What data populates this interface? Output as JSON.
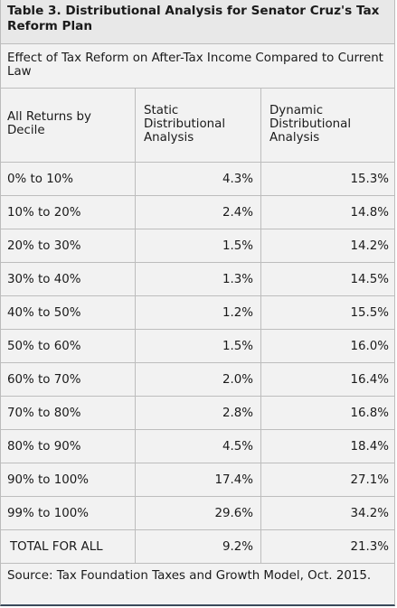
{
  "title": "Table 3. Distributional Analysis for Senator Cruz's Tax Reform Plan",
  "subtitle": "Effect of Tax Reform on After-Tax Income Compared to Current Law",
  "headers": {
    "decile": "All Returns by Decile",
    "static": "Static Distributional Analysis",
    "dynamic": "Dynamic Distributional Analysis"
  },
  "rows": [
    {
      "decile": "0% to 10%",
      "static": "4.3%",
      "dynamic": "15.3%"
    },
    {
      "decile": "10% to 20%",
      "static": "2.4%",
      "dynamic": "14.8%"
    },
    {
      "decile": "20% to 30%",
      "static": "1.5%",
      "dynamic": "14.2%"
    },
    {
      "decile": "30% to 40%",
      "static": "1.3%",
      "dynamic": "14.5%"
    },
    {
      "decile": "40% to 50%",
      "static": "1.2%",
      "dynamic": "15.5%"
    },
    {
      "decile": "50% to 60%",
      "static": "1.5%",
      "dynamic": "16.0%"
    },
    {
      "decile": "60% to 70%",
      "static": "2.0%",
      "dynamic": "16.4%"
    },
    {
      "decile": "70% to 80%",
      "static": "2.8%",
      "dynamic": "16.8%"
    },
    {
      "decile": "80% to 90%",
      "static": "4.5%",
      "dynamic": "18.4%"
    },
    {
      "decile": "90% to 100%",
      "static": "17.4%",
      "dynamic": "27.1%"
    },
    {
      "decile": "99% to 100%",
      "static": "29.6%",
      "dynamic": "34.2%"
    },
    {
      "decile": "TOTAL FOR ALL",
      "static": "9.2%",
      "dynamic": "21.3%"
    }
  ],
  "source": "Source: Tax Foundation Taxes and Growth Model, Oct. 2015.",
  "colors": {
    "background": "#f2f2f2",
    "title_background": "#e8e8e8",
    "rule": "#bdbdbd",
    "bottom_rule": "#3a4a5a"
  }
}
